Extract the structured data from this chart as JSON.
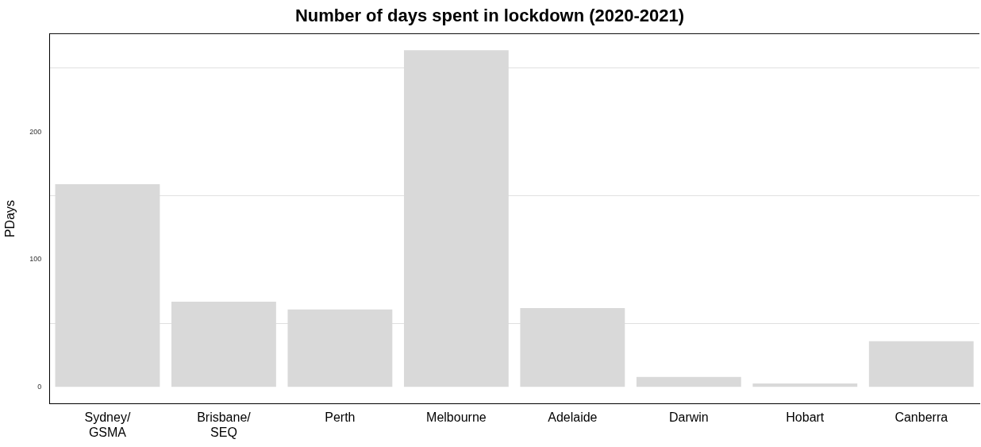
{
  "chart_data": {
    "type": "bar",
    "title": "Number of days spent in lockdown (2020-2021)",
    "ylabel": "PDays",
    "categories": [
      "Sydney/\nGSMA",
      "Brisbane/\nSEQ",
      "Perth",
      "Melbourne",
      "Adelaide",
      "Darwin",
      "Hobart",
      "Canberra"
    ],
    "values": [
      159,
      67,
      61,
      264,
      62,
      8,
      3,
      36
    ],
    "color": "#d9d9d9",
    "ylim": [
      -13,
      277
    ],
    "yticks": [
      0,
      {
        "value": 50,
        "label": null
      },
      100,
      {
        "value": 150,
        "label": null
      },
      200,
      {
        "value": 250,
        "label": null
      }
    ],
    "grid": true,
    "legend": false
  }
}
